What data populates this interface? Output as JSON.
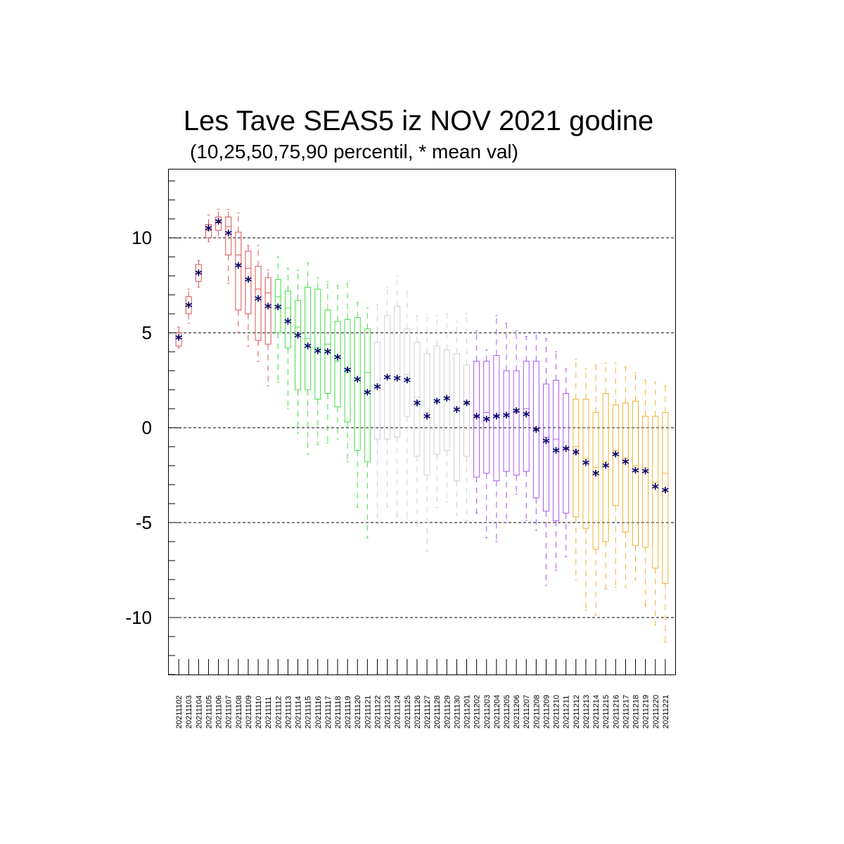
{
  "chart_data": {
    "type": "boxplot",
    "title": "Les Tave SEAS5 iz NOV 2021 godine",
    "subtitle": "(10,25,50,75,90 percentil, * mean val)",
    "xlabel": "",
    "ylabel": "",
    "ylim": [
      -13.0,
      13.6
    ],
    "yticks": [
      10,
      5,
      0,
      -5,
      -10
    ],
    "ytick_labels": [
      "10",
      "5",
      "0",
      "-5",
      "-10"
    ],
    "grid": "horizontal dashed at major ticks",
    "legend": "none",
    "month_colors": {
      "2021-11-early": "#e05050",
      "2021-11-late": "#44dd44",
      "2021-12": "#d0d0d0",
      "2022-02": "#aa55ee",
      "2022-12": "#f0b030"
    },
    "mean_marker_color": "#000066",
    "categories": [
      "20211102",
      "20211103",
      "20211104",
      "20211105",
      "20211106",
      "20211107",
      "20211108",
      "20211109",
      "20211110",
      "20211111",
      "20211112",
      "20211113",
      "20211114",
      "20211115",
      "20211116",
      "20211117",
      "20211118",
      "20211119",
      "20211120",
      "20211121",
      "20211122",
      "20211123",
      "20211124",
      "20211125",
      "20211126",
      "20211127",
      "20211128",
      "20211129",
      "20211130",
      "20211201",
      "20211202",
      "20211203",
      "20211204",
      "20211205",
      "20211206",
      "20211207",
      "20211208",
      "20211209",
      "20211210",
      "20211211",
      "20211212",
      "20211213",
      "20211214",
      "20211215",
      "20211216",
      "20211217",
      "20211218",
      "20211219",
      "20211220",
      "20211221"
    ],
    "box_colors": [
      "#e05050",
      "#e05050",
      "#e05050",
      "#e05050",
      "#e05050",
      "#e05050",
      "#e05050",
      "#e05050",
      "#e05050",
      "#e05050",
      "#44dd44",
      "#44dd44",
      "#44dd44",
      "#44dd44",
      "#44dd44",
      "#44dd44",
      "#44dd44",
      "#44dd44",
      "#44dd44",
      "#44dd44",
      "#d0d0d0",
      "#d0d0d0",
      "#d0d0d0",
      "#d0d0d0",
      "#d0d0d0",
      "#d0d0d0",
      "#d0d0d0",
      "#d0d0d0",
      "#d0d0d0",
      "#d0d0d0",
      "#aa55ee",
      "#aa55ee",
      "#aa55ee",
      "#aa55ee",
      "#aa55ee",
      "#aa55ee",
      "#aa55ee",
      "#aa55ee",
      "#aa55ee",
      "#aa55ee",
      "#f0b030",
      "#f0b030",
      "#f0b030",
      "#f0b030",
      "#f0b030",
      "#f0b030",
      "#f0b030",
      "#f0b030",
      "#f0b030",
      "#f0b030"
    ],
    "p10": [
      4.2,
      5.5,
      7.4,
      9.8,
      10.0,
      7.6,
      5.0,
      4.3,
      3.5,
      2.2,
      2.4,
      1.0,
      -0.3,
      -1.4,
      -0.9,
      -0.8,
      -0.6,
      -1.8,
      -4.2,
      -5.8,
      -4.7,
      -4.2,
      -4.7,
      -4.8,
      -5.2,
      -6.5,
      -4.2,
      -3.9,
      -4.6,
      -4.9,
      -4.5,
      -5.8,
      -6.0,
      -5.0,
      -3.5,
      -4.9,
      -5.4,
      -8.3,
      -7.5,
      -6.8,
      -8.0,
      -9.6,
      -9.9,
      -8.5,
      -8.4,
      -8.4,
      -8.0,
      -9.4,
      -10.4,
      -11.3
    ],
    "p25": [
      4.3,
      6.0,
      7.7,
      10.0,
      10.4,
      9.1,
      6.2,
      6.0,
      4.6,
      4.4,
      5.0,
      4.2,
      2.0,
      2.0,
      1.5,
      1.8,
      1.1,
      0.3,
      -1.2,
      -1.8,
      -0.6,
      -0.6,
      -0.5,
      0.6,
      -1.5,
      -2.5,
      -1.4,
      -1.2,
      -2.8,
      -1.5,
      -2.6,
      -2.4,
      -2.8,
      -2.3,
      -2.5,
      -2.3,
      -3.7,
      -4.4,
      -4.9,
      -4.5,
      -4.7,
      -5.3,
      -6.4,
      -6.0,
      -4.1,
      -5.5,
      -6.2,
      -6.3,
      -7.4,
      -8.2
    ],
    "p50": [
      4.8,
      6.5,
      8.2,
      10.4,
      10.8,
      10.6,
      9.1,
      8.4,
      7.3,
      7.1,
      6.9,
      6.3,
      5.3,
      4.7,
      4.2,
      4.4,
      3.5,
      2.9,
      2.5,
      2.9,
      2.3,
      2.6,
      2.7,
      2.8,
      1.6,
      0.8,
      1.4,
      1.5,
      1.1,
      1.3,
      0.6,
      0.8,
      0.6,
      0.7,
      0.8,
      1.0,
      -0.1,
      -0.5,
      -0.6,
      -1.1,
      -1.0,
      -1.6,
      -2.1,
      -1.8,
      -1.2,
      -1.6,
      -2.0,
      -2.1,
      -2.9,
      -2.4
    ],
    "p75": [
      5.0,
      6.9,
      8.6,
      10.7,
      11.1,
      11.1,
      10.3,
      9.3,
      8.5,
      7.9,
      7.8,
      7.2,
      6.7,
      7.4,
      7.3,
      6.2,
      5.6,
      5.7,
      5.8,
      5.2,
      4.5,
      5.9,
      6.4,
      5.2,
      4.5,
      3.9,
      4.3,
      4.1,
      3.9,
      3.3,
      3.5,
      3.5,
      3.8,
      3.0,
      3.0,
      3.5,
      3.5,
      2.3,
      2.5,
      1.8,
      1.5,
      1.5,
      0.8,
      1.8,
      1.2,
      1.3,
      1.4,
      0.6,
      0.6,
      0.8
    ],
    "p90": [
      5.3,
      7.3,
      8.8,
      11.2,
      11.5,
      11.5,
      11.3,
      9.6,
      9.6,
      8.3,
      9.0,
      8.4,
      8.3,
      8.7,
      7.9,
      7.7,
      7.5,
      7.6,
      6.6,
      6.3,
      6.5,
      7.4,
      8.0,
      7.2,
      5.9,
      6.0,
      5.9,
      6.0,
      5.6,
      6.0,
      5.1,
      4.1,
      5.9,
      5.5,
      5.1,
      4.8,
      5.0,
      4.7,
      4.0,
      3.1,
      3.6,
      3.1,
      3.3,
      3.4,
      3.4,
      3.2,
      2.9,
      2.5,
      2.4,
      2.2
    ],
    "mean": [
      4.75,
      6.45,
      8.15,
      10.5,
      10.85,
      10.25,
      8.55,
      7.8,
      6.8,
      6.4,
      6.35,
      5.6,
      4.85,
      4.3,
      4.05,
      4.0,
      3.7,
      3.05,
      2.55,
      1.85,
      2.15,
      2.65,
      2.6,
      2.5,
      1.3,
      0.6,
      1.4,
      1.55,
      0.95,
      1.3,
      0.6,
      0.45,
      0.6,
      0.65,
      0.9,
      0.7,
      -0.1,
      -0.7,
      -1.2,
      -1.1,
      -1.3,
      -1.85,
      -2.4,
      -2.0,
      -1.4,
      -1.8,
      -2.25,
      -2.3,
      -3.1,
      -3.3
    ]
  }
}
